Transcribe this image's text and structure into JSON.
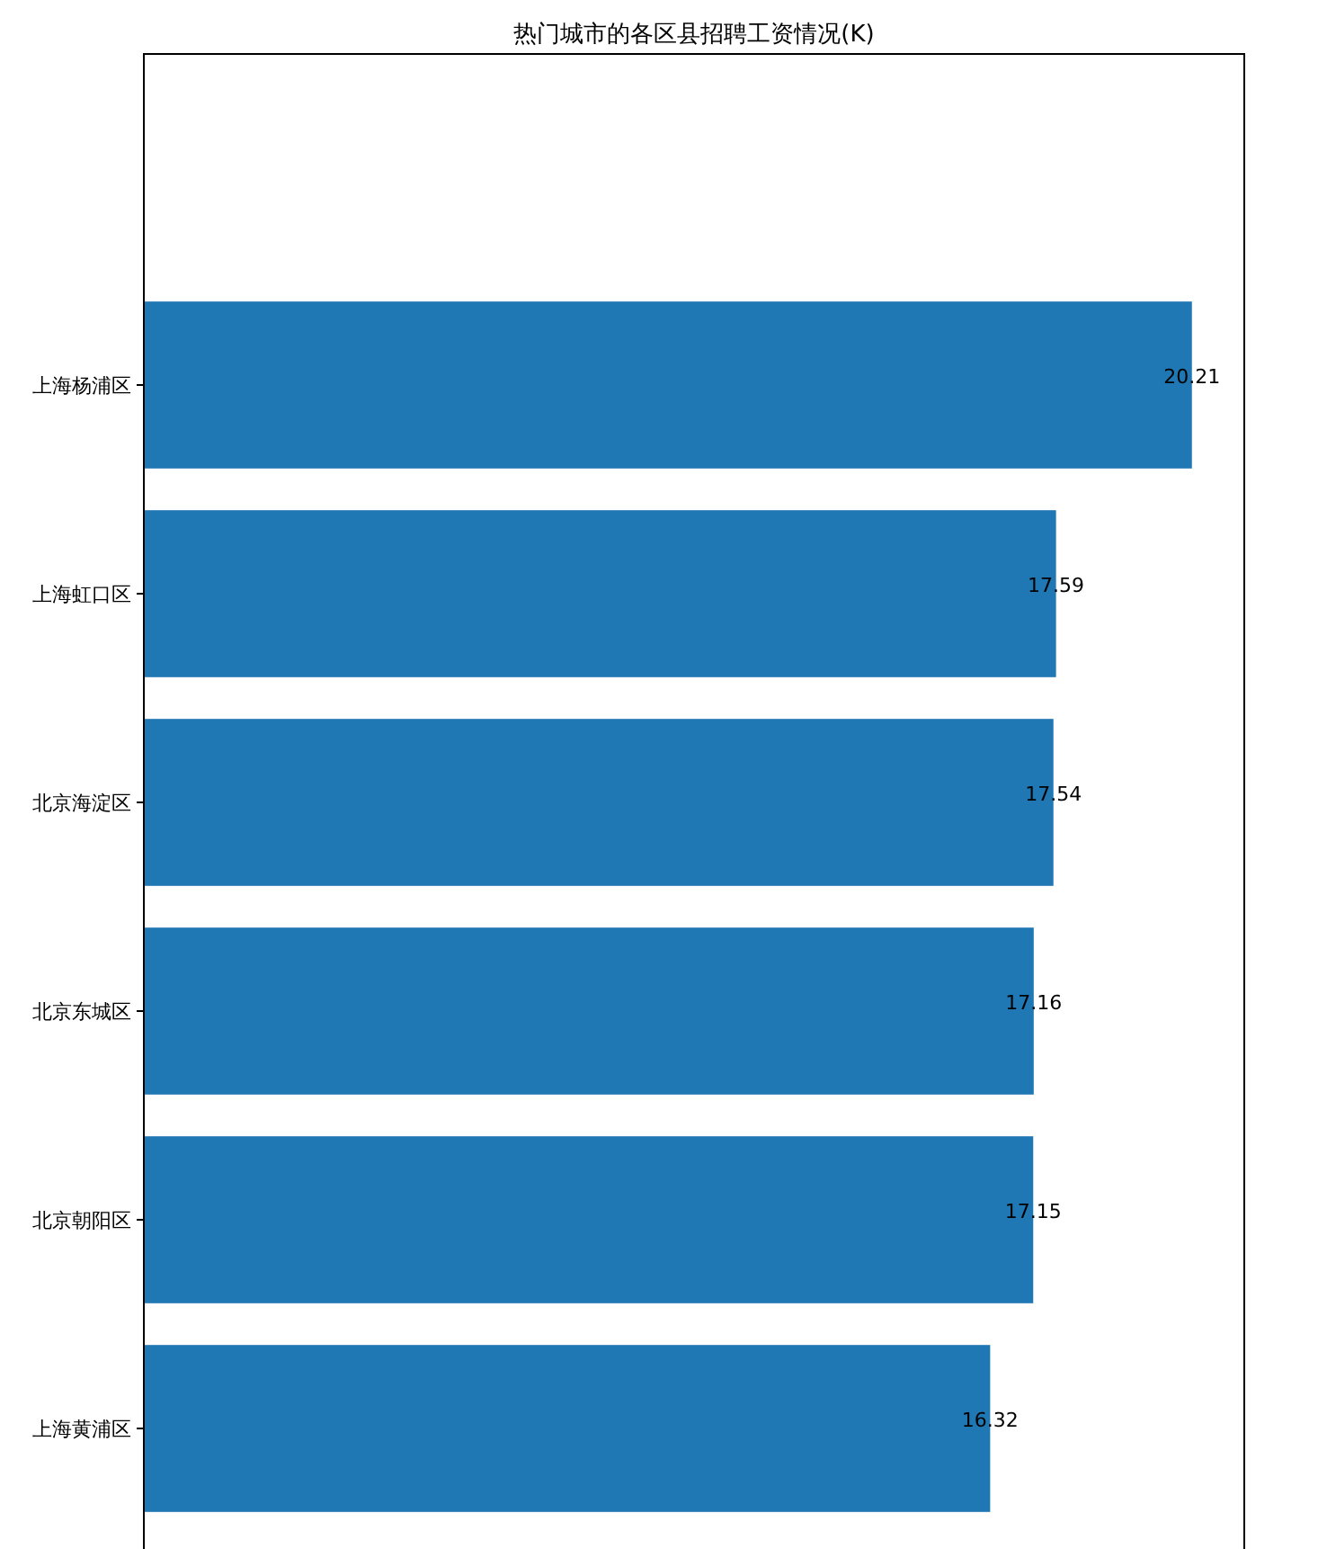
{
  "chart_data": {
    "type": "bar",
    "orientation": "horizontal",
    "title": "热门城市的各区县招聘工资情况(K)",
    "categories": [
      "上海杨浦区",
      "上海虹口区",
      "北京海淀区",
      "北京东城区",
      "北京朝阳区",
      "上海黄浦区"
    ],
    "values": [
      20.21,
      17.59,
      17.54,
      17.16,
      17.15,
      16.32
    ],
    "color": "#1f77b4",
    "xlim": [
      0,
      21.22
    ],
    "data_labels": true,
    "tick_labels": "y"
  }
}
